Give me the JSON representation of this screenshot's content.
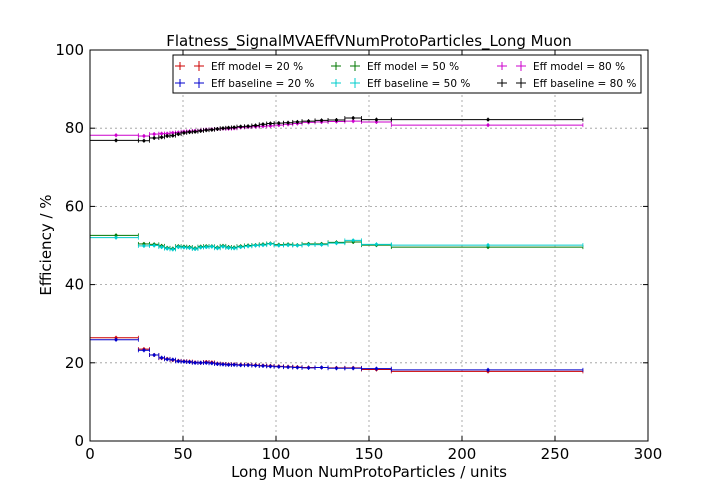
{
  "chart_data": {
    "type": "scatter",
    "title": "Flatness_SignalMVAEffVNumProtoParticles_Long Muon",
    "xlabel": "Long Muon NumProtoParticles / units",
    "ylabel": "Efficiency / %",
    "xlim": [
      0,
      300
    ],
    "ylim": [
      0,
      100
    ],
    "xticks": [
      0,
      50,
      100,
      150,
      200,
      250,
      300
    ],
    "yticks": [
      0,
      20,
      40,
      60,
      80,
      100
    ],
    "grid": true,
    "legend_position": "top-right",
    "bins": [
      {
        "x": 14,
        "xerr_low": 14,
        "xerr_high": 12
      },
      {
        "x": 29,
        "xerr_low": 3,
        "xerr_high": 3
      },
      {
        "x": 34.5,
        "xerr_low": 2.5,
        "xerr_high": 2.5
      },
      {
        "x": 38.5,
        "xerr_low": 1.5,
        "xerr_high": 1.5
      },
      {
        "x": 41.5,
        "xerr_low": 1.5,
        "xerr_high": 1.5
      },
      {
        "x": 44.5,
        "xerr_low": 1.5,
        "xerr_high": 1.5
      },
      {
        "x": 47.5,
        "xerr_low": 1.5,
        "xerr_high": 1.5
      },
      {
        "x": 50.5,
        "xerr_low": 1.5,
        "xerr_high": 1.5
      },
      {
        "x": 53.5,
        "xerr_low": 1.5,
        "xerr_high": 1.5
      },
      {
        "x": 56.5,
        "xerr_low": 1.5,
        "xerr_high": 1.5
      },
      {
        "x": 59.5,
        "xerr_low": 1.5,
        "xerr_high": 1.5
      },
      {
        "x": 62.5,
        "xerr_low": 1.5,
        "xerr_high": 1.5
      },
      {
        "x": 65.5,
        "xerr_low": 1.5,
        "xerr_high": 1.5
      },
      {
        "x": 68.5,
        "xerr_low": 1.5,
        "xerr_high": 1.5
      },
      {
        "x": 71.5,
        "xerr_low": 1.5,
        "xerr_high": 1.5
      },
      {
        "x": 74.5,
        "xerr_low": 1.5,
        "xerr_high": 1.5
      },
      {
        "x": 77.5,
        "xerr_low": 1.5,
        "xerr_high": 1.5
      },
      {
        "x": 81,
        "xerr_low": 2,
        "xerr_high": 2
      },
      {
        "x": 85,
        "xerr_low": 2,
        "xerr_high": 2
      },
      {
        "x": 89,
        "xerr_low": 2,
        "xerr_high": 2
      },
      {
        "x": 93,
        "xerr_low": 2,
        "xerr_high": 2
      },
      {
        "x": 97,
        "xerr_low": 2,
        "xerr_high": 2
      },
      {
        "x": 101.5,
        "xerr_low": 2.5,
        "xerr_high": 2.5
      },
      {
        "x": 106.5,
        "xerr_low": 2.5,
        "xerr_high": 2.5
      },
      {
        "x": 111.5,
        "xerr_low": 2.5,
        "xerr_high": 2.5
      },
      {
        "x": 117.5,
        "xerr_low": 3.5,
        "xerr_high": 3.5
      },
      {
        "x": 124.5,
        "xerr_low": 3.5,
        "xerr_high": 3.5
      },
      {
        "x": 132.5,
        "xerr_low": 4.5,
        "xerr_high": 4.5
      },
      {
        "x": 141.5,
        "xerr_low": 4.5,
        "xerr_high": 4.5
      },
      {
        "x": 154,
        "xerr_low": 8,
        "xerr_high": 8
      },
      {
        "x": 214,
        "xerr_low": 52,
        "xerr_high": 51
      }
    ],
    "series": [
      {
        "name": "Eff model = 20 %",
        "color": "#cc0000",
        "values": [
          26.4,
          23.5,
          22.0,
          21.2,
          21.0,
          20.7,
          20.5,
          20.4,
          20.3,
          20.1,
          20.0,
          20.2,
          20.1,
          19.8,
          19.7,
          19.6,
          19.6,
          19.5,
          19.5,
          19.4,
          19.3,
          19.2,
          19.1,
          19.0,
          18.9,
          18.8,
          18.8,
          18.7,
          18.7,
          18.3,
          17.8
        ]
      },
      {
        "name": "Eff baseline = 20 %",
        "color": "#0000cc",
        "values": [
          25.9,
          23.2,
          22.0,
          21.3,
          20.9,
          20.8,
          20.4,
          20.3,
          20.2,
          20.0,
          20.0,
          20.0,
          19.9,
          19.7,
          19.6,
          19.5,
          19.5,
          19.4,
          19.4,
          19.3,
          19.2,
          19.1,
          19.0,
          18.9,
          18.8,
          18.7,
          18.8,
          18.6,
          18.6,
          18.5,
          18.2
        ]
      },
      {
        "name": "Eff model = 50 %",
        "color": "#007700",
        "values": [
          52.6,
          50.4,
          50.3,
          49.9,
          49.4,
          49.2,
          49.8,
          49.7,
          49.6,
          49.3,
          49.7,
          49.8,
          49.8,
          49.5,
          49.9,
          49.6,
          49.5,
          49.8,
          50.0,
          50.1,
          50.3,
          50.5,
          50.2,
          50.3,
          50.1,
          50.4,
          50.4,
          50.8,
          50.9,
          50.1,
          49.6
        ]
      },
      {
        "name": "Eff baseline = 50 %",
        "color": "#00cccc",
        "values": [
          52.0,
          49.9,
          50.0,
          49.6,
          49.2,
          49.0,
          49.6,
          49.5,
          49.4,
          49.1,
          49.5,
          49.6,
          49.7,
          49.3,
          49.7,
          49.4,
          49.3,
          49.6,
          49.8,
          50.0,
          50.1,
          50.4,
          50.0,
          50.1,
          50.0,
          50.2,
          50.2,
          50.6,
          51.3,
          50.3,
          50.1
        ]
      },
      {
        "name": "Eff model = 80 %",
        "color": "#cc00cc",
        "values": [
          78.2,
          78.0,
          78.5,
          78.6,
          78.6,
          78.8,
          78.9,
          79.1,
          79.2,
          79.3,
          79.4,
          79.6,
          79.7,
          79.8,
          79.9,
          79.9,
          80.0,
          80.2,
          80.3,
          80.4,
          80.5,
          80.6,
          80.8,
          81.0,
          81.2,
          81.5,
          81.6,
          81.7,
          81.8,
          81.6,
          80.8
        ]
      },
      {
        "name": "Eff baseline = 80 %",
        "color": "#000000",
        "values": [
          76.9,
          76.8,
          77.5,
          77.7,
          78.0,
          78.1,
          78.5,
          78.8,
          79.0,
          79.1,
          79.3,
          79.5,
          79.6,
          79.8,
          80.0,
          80.1,
          80.2,
          80.4,
          80.5,
          80.7,
          81.0,
          81.2,
          81.3,
          81.4,
          81.6,
          81.8,
          82.0,
          82.1,
          82.6,
          82.2,
          82.2
        ]
      }
    ]
  }
}
